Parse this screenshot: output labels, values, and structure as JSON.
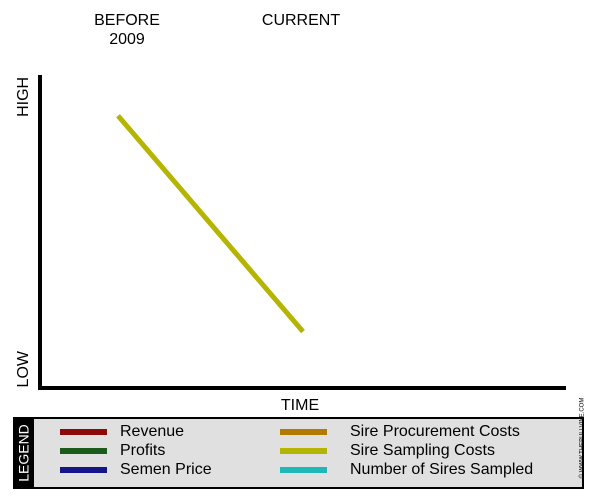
{
  "chart_data": {
    "type": "line",
    "categories": [
      "BEFORE 2009",
      "CURRENT"
    ],
    "ylim": [
      0,
      100
    ],
    "yticks": [
      {
        "value": 93,
        "label": "HIGH"
      },
      {
        "value": 6,
        "label": "LOW"
      }
    ],
    "x_label": "TIME",
    "legend_title": "LEGEND",
    "credit": "© WWW.THEBULLVINE.COM",
    "series": [
      {
        "name": "Revenue",
        "color": "#8b0a0a",
        "values": [
          null,
          null
        ]
      },
      {
        "name": "Profits",
        "color": "#1b5a1b",
        "values": [
          null,
          null
        ]
      },
      {
        "name": "Semen Price",
        "color": "#15158a",
        "values": [
          null,
          null
        ]
      },
      {
        "name": "Sire Procurement Costs",
        "color": "#b27a00",
        "values": [
          null,
          null
        ]
      },
      {
        "name": "Sire Sampling Costs",
        "color": "#b5b400",
        "values": [
          87,
          18
        ]
      },
      {
        "name": "Number of Sires Sampled",
        "color": "#1fb8b8",
        "values": [
          null,
          null
        ]
      }
    ]
  }
}
